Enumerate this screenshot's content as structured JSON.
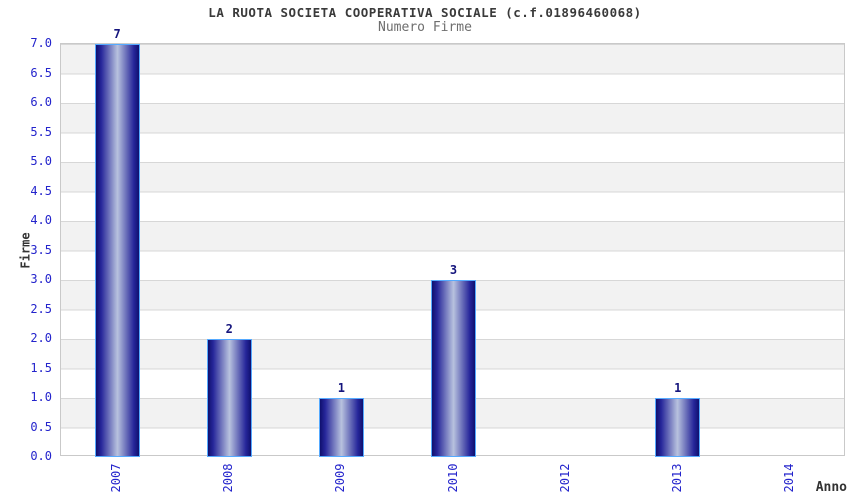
{
  "chart_data": {
    "type": "bar",
    "title": "LA RUOTA SOCIETA COOPERATIVA SOCIALE (c.f.01896460068)",
    "subtitle": "Numero Firme",
    "xlabel": "Anno",
    "ylabel": "Firme",
    "categories": [
      "2007",
      "2008",
      "2009",
      "2010",
      "2012",
      "2013",
      "2014"
    ],
    "values": [
      7,
      2,
      1,
      3,
      0,
      1,
      0
    ],
    "bar_value_labels": [
      "7",
      "2",
      "1",
      "3",
      "",
      "1",
      ""
    ],
    "ylim": [
      0,
      7
    ],
    "y_tick_step": 0.5,
    "y_ticks": [
      "0.0",
      "0.5",
      "1.0",
      "1.5",
      "2.0",
      "2.5",
      "3.0",
      "3.5",
      "4.0",
      "4.5",
      "5.0",
      "5.5",
      "6.0",
      "6.5",
      "7.0"
    ],
    "legend": "none",
    "grid": "horizontal alternating bands every 0.5",
    "colors": {
      "background": "#ffffff",
      "band_gray": "#f2f2f2",
      "band_white": "#ffffff",
      "gridline": "#d7d7d7",
      "plot_border": "#c9c9c9",
      "tick_label": "#2424cc",
      "value_label": "#15157d",
      "title": "#3a3a3a",
      "subtitle": "#6e6e6e",
      "axis_title": "#333333",
      "bar_edge_dark": "#10106e",
      "bar_mid": "#26269a",
      "bar_center_light": "#b8c2de",
      "bar_border": "#55aaff"
    }
  }
}
